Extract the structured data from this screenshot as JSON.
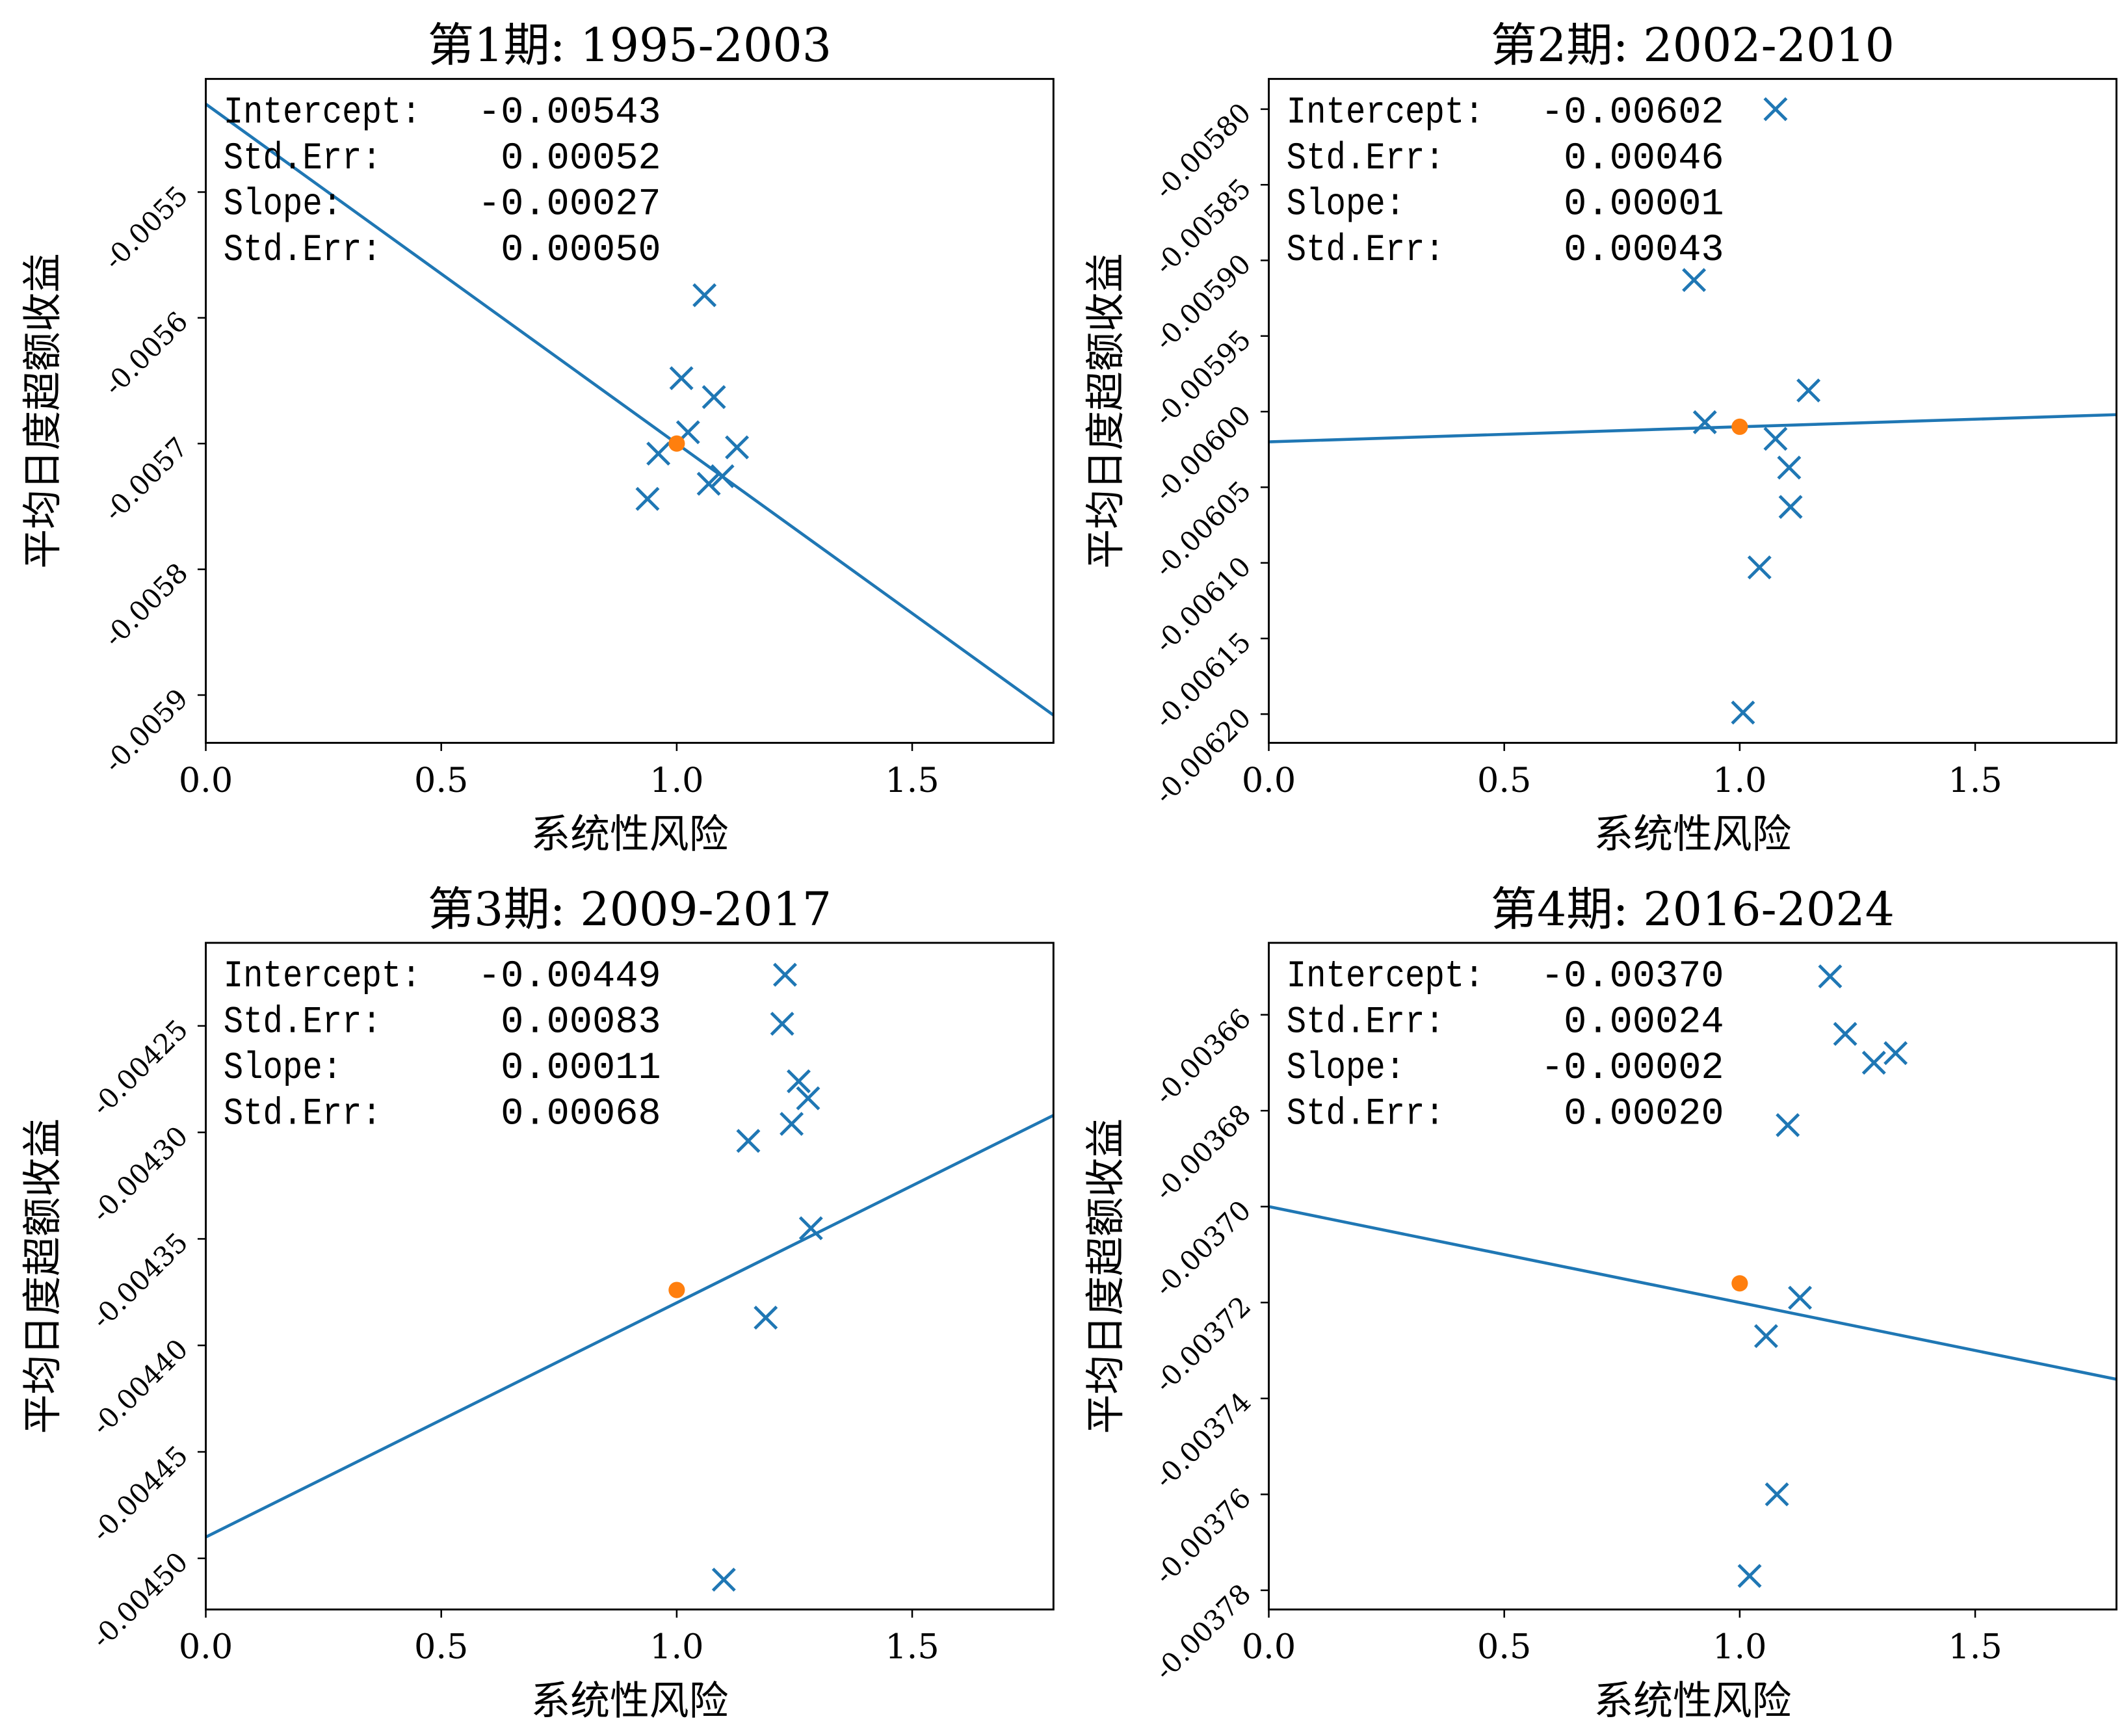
{
  "colors": {
    "points": "#1f77b4",
    "line": "#1f77b4",
    "mean": "#ff7f0e",
    "axes": "#000000"
  },
  "chart_data": [
    {
      "type": "scatter",
      "title": "第1期: 1995-2003",
      "xlabel": "系统性风险",
      "ylabel": "平均日度超额收益",
      "xlim": [
        0,
        1.8
      ],
      "ylim": [
        -0.005938,
        -0.00541
      ],
      "xticks": [
        0,
        0.5,
        1.0,
        1.5
      ],
      "xtick_labels": [
        "0.0",
        "0.5",
        "1.0",
        "1.5"
      ],
      "yticks": [
        -0.0055,
        -0.0056,
        -0.0057,
        -0.0058,
        -0.0059
      ],
      "ytick_labels": [
        "-0.0055",
        "-0.0056",
        "-0.0057",
        "-0.0058",
        "-0.0059"
      ],
      "stats": [
        {
          "label": "Intercept:",
          "value": "-0.00543"
        },
        {
          "label": "Std.Err:",
          "value": "0.00052"
        },
        {
          "label": "Slope:",
          "value": "-0.00027"
        },
        {
          "label": "Std.Err:",
          "value": "0.00050"
        }
      ],
      "intercept": -0.00543,
      "slope": -0.00027,
      "mean_point": {
        "x": 1.0,
        "y": -0.0057
      },
      "points": [
        {
          "x": 1.059,
          "y": -0.005582
        },
        {
          "x": 1.01,
          "y": -0.005648
        },
        {
          "x": 1.079,
          "y": -0.005663
        },
        {
          "x": 1.024,
          "y": -0.005691
        },
        {
          "x": 0.961,
          "y": -0.005708
        },
        {
          "x": 1.128,
          "y": -0.005703
        },
        {
          "x": 1.097,
          "y": -0.005726
        },
        {
          "x": 1.068,
          "y": -0.005732
        },
        {
          "x": 0.938,
          "y": -0.005744
        }
      ]
    },
    {
      "type": "scatter",
      "title": "第2期: 2002-2010",
      "xlabel": "系统性风险",
      "ylabel": "平均日度超额收益",
      "xlim": [
        0,
        1.8
      ],
      "ylim": [
        -0.006219,
        -0.00578
      ],
      "xticks": [
        0,
        0.5,
        1.0,
        1.5
      ],
      "xtick_labels": [
        "0.0",
        "0.5",
        "1.0",
        "1.5"
      ],
      "yticks": [
        -0.0058,
        -0.00585,
        -0.0059,
        -0.00595,
        -0.006,
        -0.00605,
        -0.0061,
        -0.00615,
        -0.0062
      ],
      "ytick_labels": [
        "-0.00580",
        "-0.00585",
        "-0.00590",
        "-0.00595",
        "-0.00600",
        "-0.00605",
        "-0.00610",
        "-0.00615",
        "-0.00620"
      ],
      "stats": [
        {
          "label": "Intercept:",
          "value": "-0.00602"
        },
        {
          "label": "Std.Err:",
          "value": "0.00046"
        },
        {
          "label": "Slope:",
          "value": "0.00001"
        },
        {
          "label": "Std.Err:",
          "value": "0.00043"
        }
      ],
      "intercept": -0.00602,
      "slope": 1e-05,
      "mean_point": {
        "x": 1.0,
        "y": -0.00601
      },
      "points": [
        {
          "x": 1.076,
          "y": -0.0058
        },
        {
          "x": 0.903,
          "y": -0.005913
        },
        {
          "x": 1.146,
          "y": -0.005986
        },
        {
          "x": 0.926,
          "y": -0.006007
        },
        {
          "x": 1.076,
          "y": -0.006018
        },
        {
          "x": 1.105,
          "y": -0.006037
        },
        {
          "x": 1.108,
          "y": -0.006063
        },
        {
          "x": 1.042,
          "y": -0.006103
        },
        {
          "x": 1.007,
          "y": -0.006199
        }
      ]
    },
    {
      "type": "scatter",
      "title": "第3期: 2009-2017",
      "xlabel": "系统性风险",
      "ylabel": "平均日度超额收益",
      "xlim": [
        0,
        1.8
      ],
      "ylim": [
        -0.004524,
        -0.004211
      ],
      "xticks": [
        0,
        0.5,
        1.0,
        1.5
      ],
      "xtick_labels": [
        "0.0",
        "0.5",
        "1.0",
        "1.5"
      ],
      "yticks": [
        -0.00425,
        -0.0043,
        -0.00435,
        -0.0044,
        -0.00445,
        -0.0045
      ],
      "ytick_labels": [
        "-0.00425",
        "-0.00430",
        "-0.00435",
        "-0.00440",
        "-0.00445",
        "-0.00450"
      ],
      "stats": [
        {
          "label": "Intercept:",
          "value": "-0.00449"
        },
        {
          "label": "Std.Err:",
          "value": "0.00083"
        },
        {
          "label": "Slope:",
          "value": "0.00011"
        },
        {
          "label": "Std.Err:",
          "value": "0.00068"
        }
      ],
      "intercept": -0.00449,
      "slope": 0.00011,
      "mean_point": {
        "x": 1.0,
        "y": -0.004374
      },
      "points": [
        {
          "x": 1.23,
          "y": -0.004226
        },
        {
          "x": 1.224,
          "y": -0.004249
        },
        {
          "x": 1.259,
          "y": -0.004276
        },
        {
          "x": 1.279,
          "y": -0.004284
        },
        {
          "x": 1.244,
          "y": -0.004296
        },
        {
          "x": 1.152,
          "y": -0.004304
        },
        {
          "x": 1.285,
          "y": -0.004345
        },
        {
          "x": 1.189,
          "y": -0.004387
        },
        {
          "x": 1.1,
          "y": -0.00451
        }
      ]
    },
    {
      "type": "scatter",
      "title": "第4期: 2016-2024",
      "xlabel": "系统性风险",
      "ylabel": "平均日度超额收益",
      "xlim": [
        0,
        1.8
      ],
      "ylim": [
        -0.003784,
        -0.003645
      ],
      "xticks": [
        0,
        0.5,
        1.0,
        1.5
      ],
      "xtick_labels": [
        "0.0",
        "0.5",
        "1.0",
        "1.5"
      ],
      "yticks": [
        -0.00366,
        -0.00368,
        -0.0037,
        -0.00372,
        -0.00374,
        -0.00376,
        -0.00378
      ],
      "ytick_labels": [
        "-0.00366",
        "-0.00368",
        "-0.00370",
        "-0.00372",
        "-0.00374",
        "-0.00376",
        "-0.00378"
      ],
      "stats": [
        {
          "label": "Intercept:",
          "value": "-0.00370"
        },
        {
          "label": "Std.Err:",
          "value": "0.00024"
        },
        {
          "label": "Slope:",
          "value": "-0.00002"
        },
        {
          "label": "Std.Err:",
          "value": "0.00020"
        }
      ],
      "intercept": -0.0037,
      "slope": -2e-05,
      "mean_point": {
        "x": 1.0,
        "y": -0.003716
      },
      "points": [
        {
          "x": 1.192,
          "y": -0.003652
        },
        {
          "x": 1.224,
          "y": -0.003664
        },
        {
          "x": 1.285,
          "y": -0.00367
        },
        {
          "x": 1.331,
          "y": -0.003668
        },
        {
          "x": 1.102,
          "y": -0.003683
        },
        {
          "x": 1.128,
          "y": -0.003719
        },
        {
          "x": 1.056,
          "y": -0.003727
        },
        {
          "x": 1.079,
          "y": -0.00376
        },
        {
          "x": 1.021,
          "y": -0.003777
        }
      ]
    }
  ]
}
